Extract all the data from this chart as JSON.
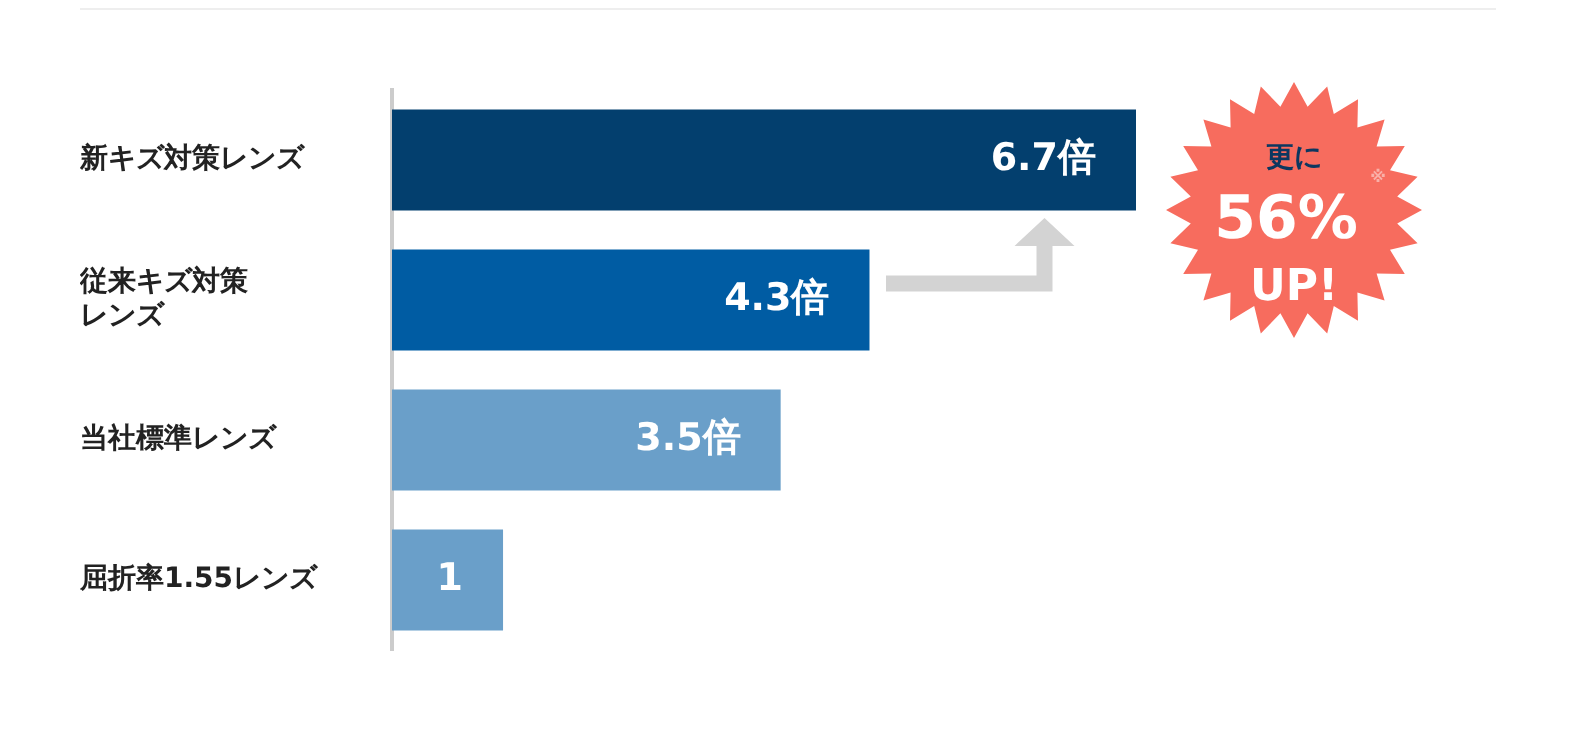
{
  "chart_data": {
    "type": "bar",
    "orientation": "horizontal",
    "categories": [
      "新キズ対策レンズ",
      "従来キズ対策レンズ",
      "当社標準レンズ",
      "屈折率1.55レンズ"
    ],
    "values": [
      6.7,
      4.3,
      3.5,
      1
    ],
    "colors": [
      "#033f6e",
      "#005ca3",
      "#6a9fc9",
      "#6a9fc9"
    ],
    "value_labels": [
      "6.7倍",
      "4.3倍",
      "3.5倍",
      "1"
    ],
    "annotations": [
      "更に",
      "56%",
      "UP!",
      "※"
    ],
    "tick_labels": "y",
    "legend": false
  }
}
